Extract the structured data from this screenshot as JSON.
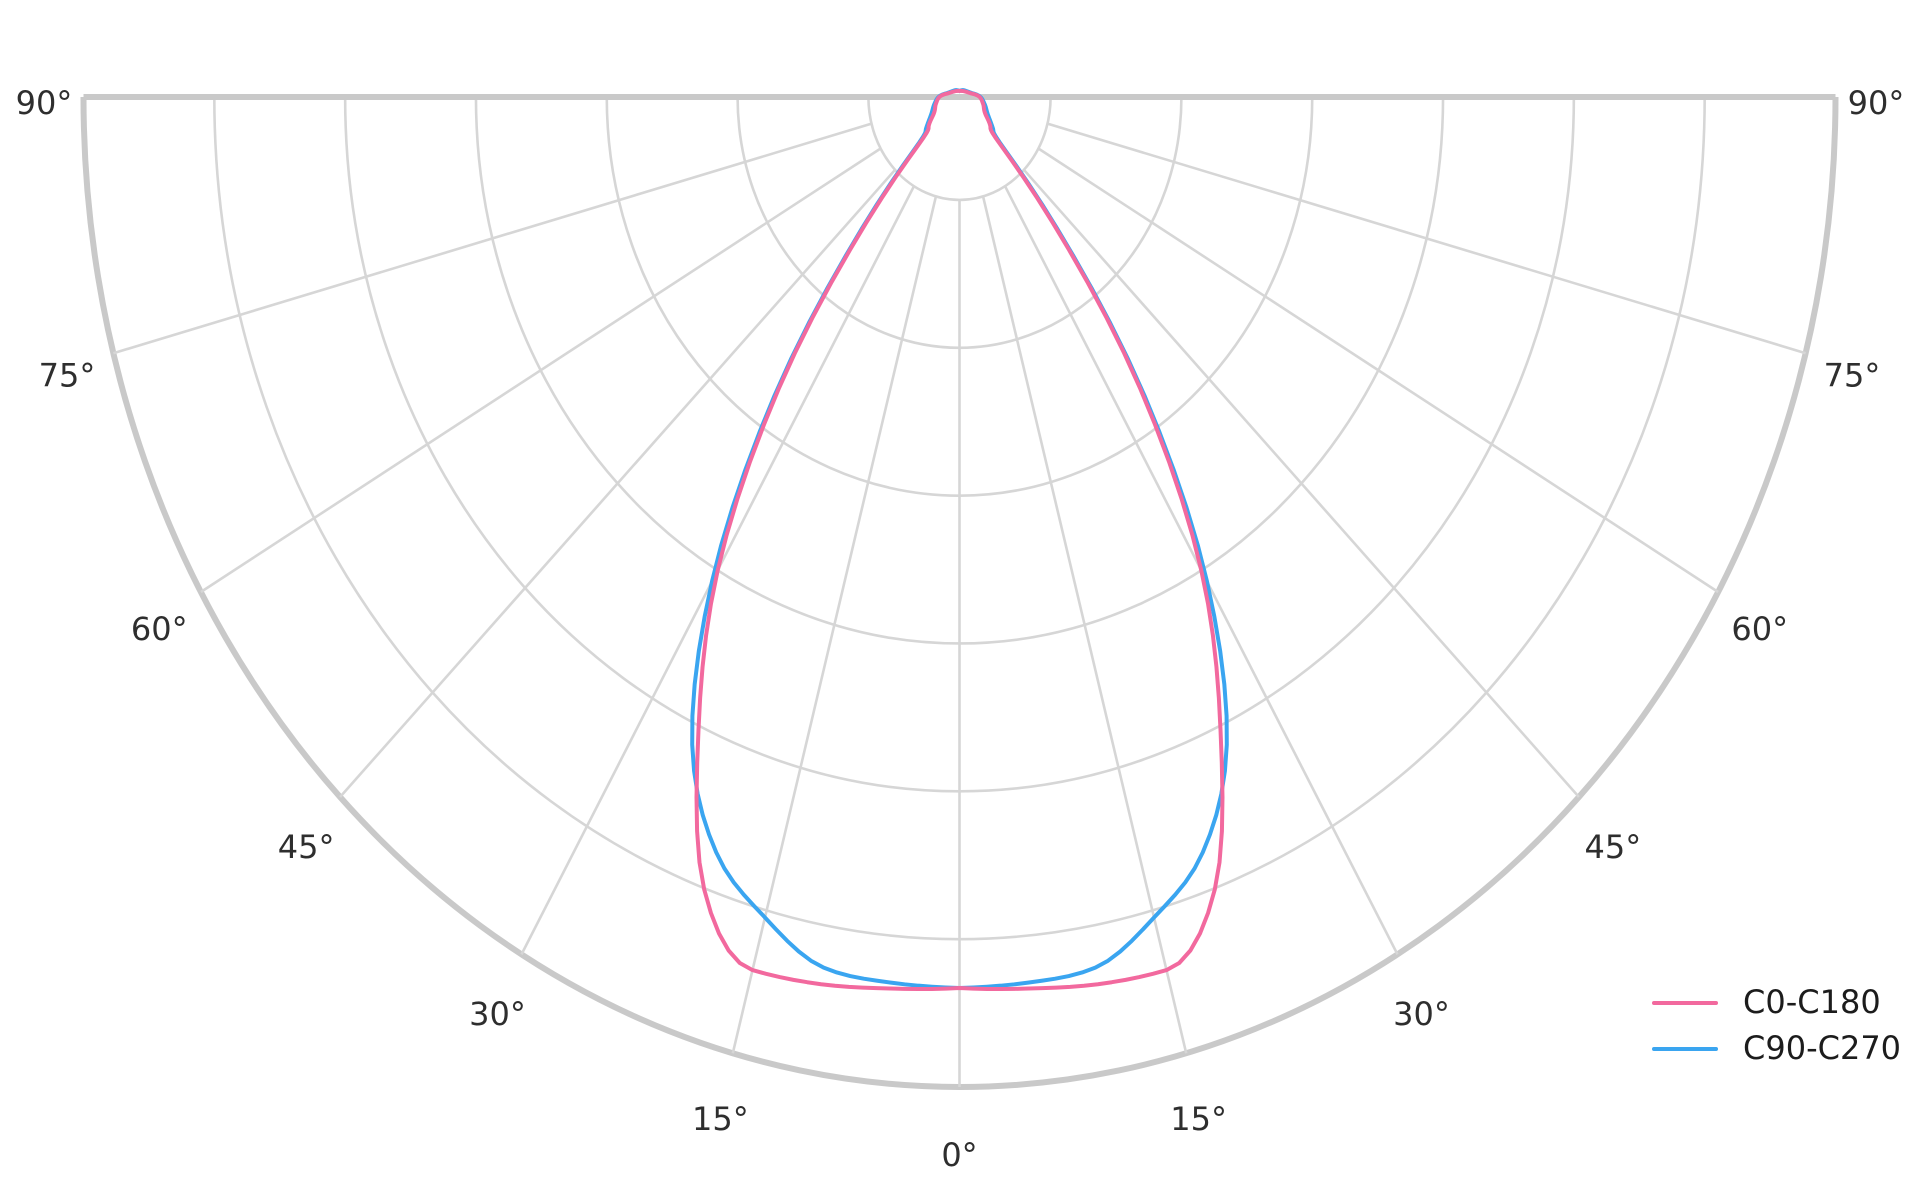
{
  "chart_data": {
    "type": "line",
    "subtype": "polar-photometric-intensity-distribution",
    "title": "",
    "angle_unit": "degrees-from-nadir",
    "angle_ticks": [
      0,
      15,
      30,
      45,
      60,
      75,
      90
    ],
    "angle_tick_labels": [
      "0°",
      "15°",
      "30°",
      "45°",
      "60°",
      "75°",
      "90°"
    ],
    "radial_range": [
      0,
      1
    ],
    "radial_rings": 6,
    "hub_fraction": 0.104,
    "grid": true,
    "grid_color": "#d6d6d6",
    "grid_outline_color": "#c9c9c9",
    "tick_label_color": "#2e2e2e",
    "legend_position": "bottom-right",
    "symmetric": true,
    "series": [
      {
        "name": "C0-C180",
        "color": "#f2699e",
        "angles": [
          0,
          5,
          10,
          15,
          20,
          25,
          30,
          35,
          40,
          45,
          50,
          60,
          75,
          90,
          105,
          120,
          150,
          180
        ],
        "values": [
          0.9,
          0.904,
          0.91,
          0.913,
          0.852,
          0.705,
          0.552,
          0.36,
          0.165,
          0.058,
          0.046,
          0.034,
          0.028,
          0.023,
          0.014,
          0.01,
          0.007,
          0.006
        ]
      },
      {
        "name": "C90-C270",
        "color": "#3aa5f0",
        "angles": [
          0,
          5,
          10,
          15,
          20,
          25,
          30,
          35,
          40,
          45,
          50,
          60,
          75,
          90,
          105,
          120,
          150,
          180
        ],
        "values": [
          0.9,
          0.898,
          0.893,
          0.858,
          0.812,
          0.722,
          0.565,
          0.368,
          0.173,
          0.065,
          0.05,
          0.038,
          0.03,
          0.024,
          0.015,
          0.011,
          0.008,
          0.006
        ]
      }
    ]
  },
  "legend": {
    "entries": [
      {
        "label": "C0-C180",
        "color": "#f2699e"
      },
      {
        "label": "C90-C270",
        "color": "#3aa5f0"
      }
    ]
  }
}
